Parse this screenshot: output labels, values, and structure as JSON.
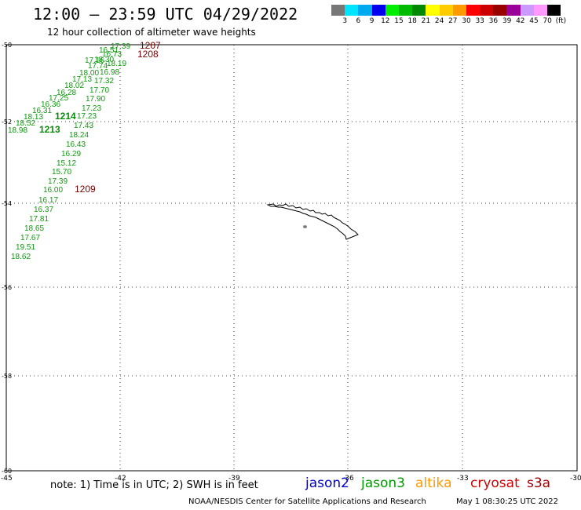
{
  "header": {
    "title": "12:00 – 23:59 UTC 04/29/2022",
    "subtitle": "12 hour collection of altimeter wave heights"
  },
  "colorbar": {
    "colors": [
      "#777777",
      "#00e5ff",
      "#00aaee",
      "#0000ee",
      "#00ee00",
      "#00bb00",
      "#008800",
      "#ffff00",
      "#ffcc00",
      "#ff9900",
      "#ff0000",
      "#cc0000",
      "#990000",
      "#990099",
      "#cc99ff",
      "#ff99ff",
      "#000000"
    ],
    "labels": [
      "3",
      "6",
      "9",
      "12",
      "15",
      "18",
      "21",
      "24",
      "27",
      "30",
      "33",
      "36",
      "39",
      "42",
      "45",
      "70",
      "(ft)"
    ]
  },
  "axes": {
    "lat_labels": [
      "-50",
      "-52",
      "-54",
      "-56",
      "-58",
      "-60"
    ],
    "lon_labels": [
      "-45",
      "-42",
      "-39",
      "-36",
      "-33",
      "-30"
    ]
  },
  "observations": {
    "values": [
      "17.39",
      "16.73",
      "16.51",
      "18.30",
      "18.19",
      "17.74",
      "17.16",
      "18.00",
      "16.98",
      "17.13",
      "17.32",
      "18.02",
      "17.70",
      "16.28",
      "17.25",
      "17.90",
      "16.36",
      "17.23",
      "16.31",
      "17.23",
      "18.13",
      "18.52",
      "17.43",
      "18.98",
      "18.24",
      "16.43",
      "16.29",
      "15.12",
      "15.70",
      "17.39",
      "16.00",
      "16.17",
      "16.37",
      "17.81",
      "18.65",
      "17.67",
      "19.51",
      "18.62"
    ],
    "pass_ids_green": [
      "1214",
      "1213"
    ],
    "pass_ids_red": [
      "1207",
      "1208",
      "1209"
    ]
  },
  "footer": {
    "note": "note:  1)  Time is in UTC;  2)  SWH is in feet",
    "satellites": [
      {
        "name": "jason2",
        "color": "#0000cc"
      },
      {
        "name": "jason3",
        "color": "#009900"
      },
      {
        "name": "altika",
        "color": "#ff9900"
      },
      {
        "name": "cryosat",
        "color": "#cc0000"
      },
      {
        "name": "s3a",
        "color": "#990000"
      }
    ],
    "credit": "NOAA/NESDIS Center for Satellite Applications and Research",
    "generated": "May  1 08:30:25 UTC 2022"
  }
}
